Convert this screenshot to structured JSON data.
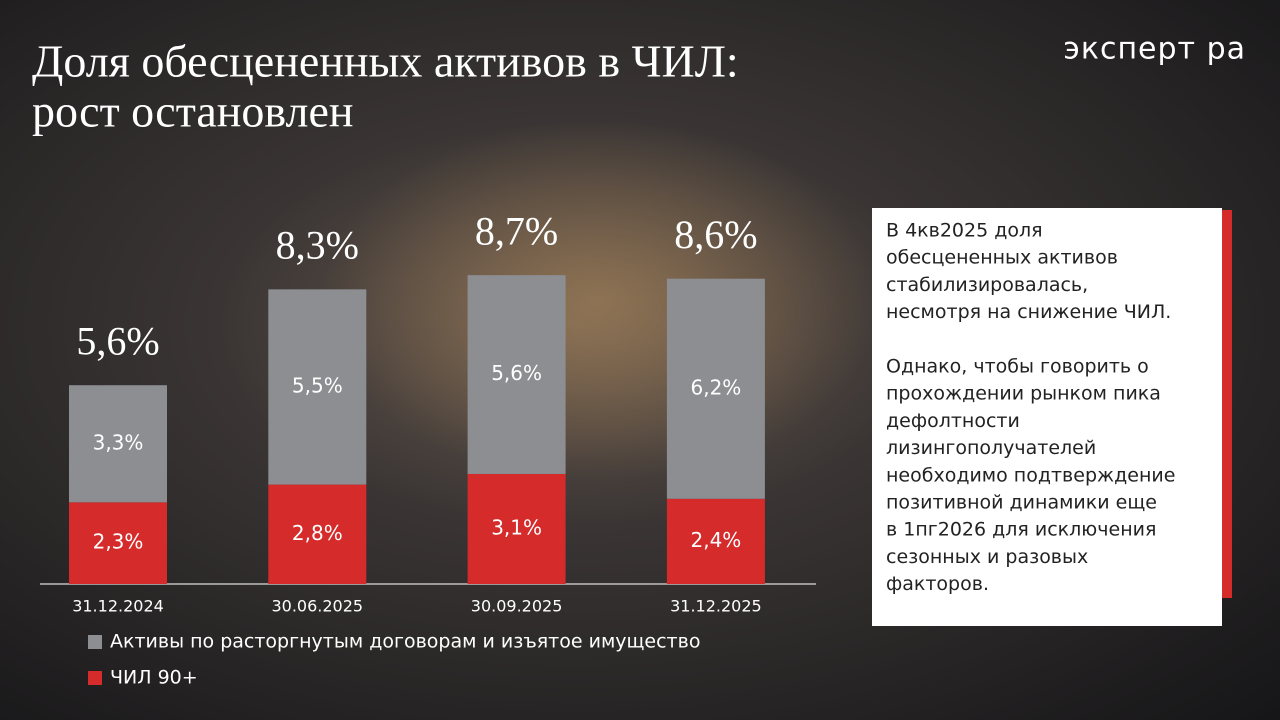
{
  "chart_data": {
    "type": "stacked_bar",
    "title": [
      "Доля обесцененных активов в ЧИЛ:",
      "рост остановлен"
    ],
    "logo": "эксперт ра",
    "categories": [
      "31.12.2024",
      "30.06.2025",
      "30.09.2025",
      "31.12.2025"
    ],
    "series": [
      {
        "name": "Активы по расторгнутым договорам и изъятое имущество",
        "color": "#8c8e92",
        "values": [
          3.3,
          5.5,
          5.6,
          6.2
        ],
        "value_labels": [
          "3,3%",
          "5,5%",
          "5,6%",
          "6,2%"
        ]
      },
      {
        "name": "ЧИЛ 90+",
        "color": "#d52b2b",
        "values": [
          2.3,
          2.8,
          3.1,
          2.4
        ],
        "value_labels": [
          "2,3%",
          "2,8%",
          "3,1%",
          "2,4%"
        ]
      }
    ],
    "totals": {
      "values": [
        5.6,
        8.3,
        8.7,
        8.6
      ],
      "value_labels": [
        "5,6%",
        "8,3%",
        "8,7%",
        "8,6%"
      ]
    },
    "ylim": [
      0,
      10
    ],
    "legend": "bottom",
    "note": {
      "paragraphs": [
        [
          "В 4кв2025 доля",
          "обесцененных активов",
          "стабилизировалась,",
          "несмотря на снижение ЧИЛ."
        ],
        [
          "Однако, чтобы говорить о",
          "прохождении рынком пика",
          "дефолтности",
          "лизингополучателей",
          "необходимо подтверждение",
          "позитивной динамики еще",
          "в 1пг2026 для исключения",
          "сезонных и разовых",
          "факторов."
        ]
      ]
    }
  }
}
